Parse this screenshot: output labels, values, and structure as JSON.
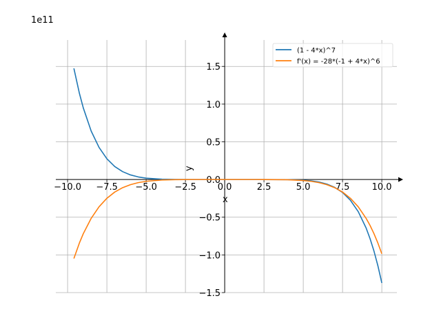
{
  "chart_data": {
    "type": "line",
    "title": "",
    "xlabel": "x",
    "ylabel": "y",
    "y_scale_label": "1e11",
    "xlim": [
      -10.75,
      10.96
    ],
    "ylim": [
      -1.5,
      1.85
    ],
    "grid": true,
    "legend_position": "top-right",
    "x_ticks": [
      -10.0,
      -7.5,
      -5.0,
      -2.5,
      0.0,
      2.5,
      5.0,
      7.5,
      10.0
    ],
    "x_tick_labels": [
      "−10.0",
      "−7.5",
      "−5.0",
      "−2.5",
      "0.0",
      "2.5",
      "5.0",
      "7.5",
      "10.0"
    ],
    "y_ticks": [
      -1.5,
      -1.0,
      -0.5,
      0.0,
      0.5,
      1.0,
      1.5
    ],
    "y_tick_labels": [
      "−1.5",
      "−1.0",
      "−0.5",
      "0.0",
      "0.5",
      "1.0",
      "1.5"
    ],
    "x": [
      -9.6,
      -9.25,
      -9,
      -8.5,
      -8,
      -7.5,
      -7,
      -6.5,
      -6,
      -5.5,
      -5,
      -4,
      -3,
      -2,
      0,
      2,
      4,
      5,
      5.5,
      6,
      6.5,
      7,
      7.5,
      8,
      8.5,
      9,
      9.25,
      9.5,
      9.75,
      10
    ],
    "series": [
      {
        "name": "(1 - 4*x)^7",
        "color": "#1f77b4",
        "values": [
          1.474,
          1.144,
          0.949,
          0.643,
          0.426,
          0.275,
          0.1725,
          0.1046,
          0.061,
          0.034,
          0.018,
          0.0041,
          0.0006,
          0,
          0,
          0,
          -0.0017,
          -0.0089,
          -0.018,
          -0.034,
          -0.061,
          -0.1046,
          -0.1725,
          -0.275,
          -0.426,
          -0.643,
          -0.784,
          -0.949,
          -1.144,
          -1.372
        ]
      },
      {
        "name": "f'(x) = -28*(-1 + 4*x)^6",
        "color": "#ff7f0e",
        "values": [
          -1.048,
          -0.843,
          -0.718,
          -0.515,
          -0.362,
          -0.249,
          -0.1665,
          -0.1085,
          -0.0684,
          -0.0414,
          -0.024,
          -0.0068,
          -0.0014,
          0,
          0,
          0,
          -0.0032,
          -0.0132,
          -0.024,
          -0.0414,
          -0.0684,
          -0.1085,
          -0.1665,
          -0.249,
          -0.362,
          -0.515,
          -0.609,
          -0.718,
          -0.843,
          -0.985
        ]
      }
    ]
  }
}
